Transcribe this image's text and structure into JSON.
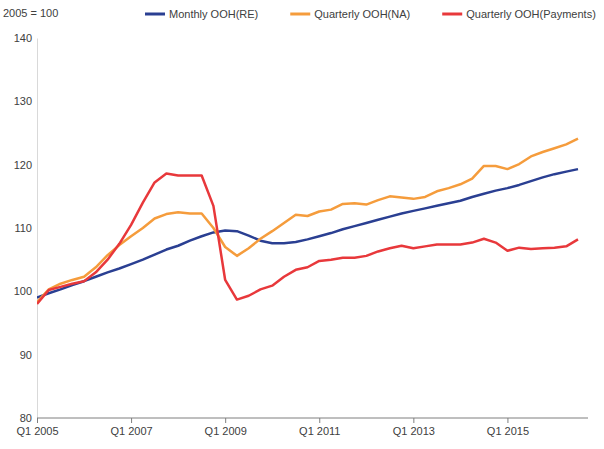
{
  "chart_data": {
    "type": "line",
    "y_label": "2005 = 100",
    "categories": [
      "Q1 2005",
      null,
      null,
      null,
      null,
      null,
      null,
      null,
      "Q1 2007",
      null,
      null,
      null,
      null,
      null,
      null,
      null,
      "Q1 2009",
      null,
      null,
      null,
      null,
      null,
      null,
      null,
      "Q1 2011",
      null,
      null,
      null,
      null,
      null,
      null,
      null,
      "Q1 2013",
      null,
      null,
      null,
      null,
      null,
      null,
      null,
      "Q1 2015",
      null,
      null,
      null,
      null,
      null,
      null
    ],
    "series": [
      {
        "name": "Monthly OOH(RE)",
        "color": "#2a3f92",
        "values": [
          99,
          99.7,
          100.3,
          101,
          101.6,
          102.3,
          103,
          103.6,
          104.3,
          105,
          105.8,
          106.6,
          107.2,
          108,
          108.7,
          109.3,
          109.6,
          109.5,
          108.8,
          108,
          107.6,
          107.6,
          107.8,
          108.2,
          108.7,
          109.2,
          109.8,
          110.3,
          110.8,
          111.3,
          111.8,
          112.3,
          112.7,
          113.1,
          113.5,
          113.9,
          114.3,
          114.9,
          115.4,
          115.9,
          116.3,
          116.8,
          117.4,
          118,
          118.5,
          118.9,
          119.3
        ]
      },
      {
        "name": "Quarterly OOH(NA)",
        "color": "#f59c3c",
        "values": [
          98.3,
          100.3,
          101.2,
          101.8,
          102.3,
          103.8,
          105.7,
          107.3,
          108.7,
          110,
          111.5,
          112.2,
          112.5,
          112.3,
          112.3,
          110,
          107,
          105.6,
          106.8,
          108.3,
          109.5,
          110.8,
          112.1,
          111.9,
          112.6,
          112.9,
          113.8,
          113.9,
          113.7,
          114.4,
          115,
          114.8,
          114.6,
          114.9,
          115.8,
          116.3,
          116.9,
          117.8,
          119.8,
          119.8,
          119.3,
          120.1,
          121.3,
          122,
          122.6,
          123.2,
          124.1
        ]
      },
      {
        "name": "Quarterly OOH(Payments)",
        "color": "#e8383b",
        "values": [
          98,
          100.2,
          100.7,
          101.2,
          101.6,
          103,
          105,
          107.5,
          110.5,
          114,
          117.2,
          118.6,
          118.3,
          118.3,
          118.3,
          113.5,
          101.8,
          98.7,
          99.3,
          100.3,
          100.9,
          102.3,
          103.4,
          103.8,
          104.8,
          105,
          105.3,
          105.3,
          105.6,
          106.3,
          106.8,
          107.2,
          106.8,
          107.1,
          107.4,
          107.4,
          107.4,
          107.7,
          108.3,
          107.7,
          106.4,
          106.9,
          106.7,
          106.8,
          106.9,
          107.1,
          108.2
        ]
      }
    ],
    "ylim": [
      80,
      140
    ],
    "yticks": [
      80,
      90,
      100,
      110,
      120,
      130,
      140
    ],
    "grid": false,
    "legend": "top"
  }
}
